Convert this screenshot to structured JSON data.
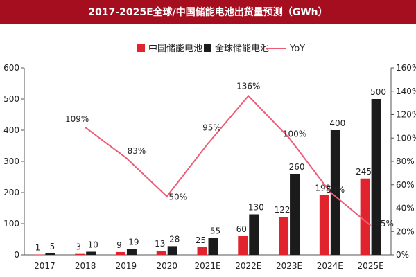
{
  "colors": {
    "title_bg": "#a40e1f",
    "china": "#e1232d",
    "global": "#1b1b1b",
    "yoy": "#ef5a75",
    "axis": "#555555"
  },
  "chart_data": {
    "type": "bar",
    "title": "2017-2025E全球/中国储能电池出货量预测（GWh）",
    "categories": [
      "2017",
      "2018",
      "2019",
      "2020",
      "2021E",
      "2022E",
      "2023E",
      "2024E",
      "2025E"
    ],
    "series": [
      {
        "name": "中国储能电池",
        "type": "bar",
        "values": [
          1,
          3,
          9,
          13,
          25,
          60,
          122,
          192,
          245
        ]
      },
      {
        "name": "全球储能电池",
        "type": "bar",
        "values": [
          5,
          10,
          19,
          28,
          55,
          130,
          260,
          400,
          500
        ]
      },
      {
        "name": "YoY",
        "type": "line",
        "axis": "right",
        "values": [
          null,
          109,
          83,
          50,
          95,
          136,
          100,
          54,
          25
        ]
      }
    ],
    "yoy_labels": [
      "",
      "109%",
      "83%",
      "50%",
      "95%",
      "136%",
      "100%",
      "54%",
      "25%"
    ],
    "ylim_left": [
      0,
      600
    ],
    "yticks_left": [
      0,
      100,
      200,
      300,
      400,
      500,
      600
    ],
    "ylim_right": [
      0,
      160
    ],
    "yticks_right": [
      "0%",
      "20%",
      "40%",
      "60%",
      "80%",
      "100%",
      "120%",
      "140%",
      "160%"
    ],
    "legend_position": "top-center",
    "grid": false
  }
}
